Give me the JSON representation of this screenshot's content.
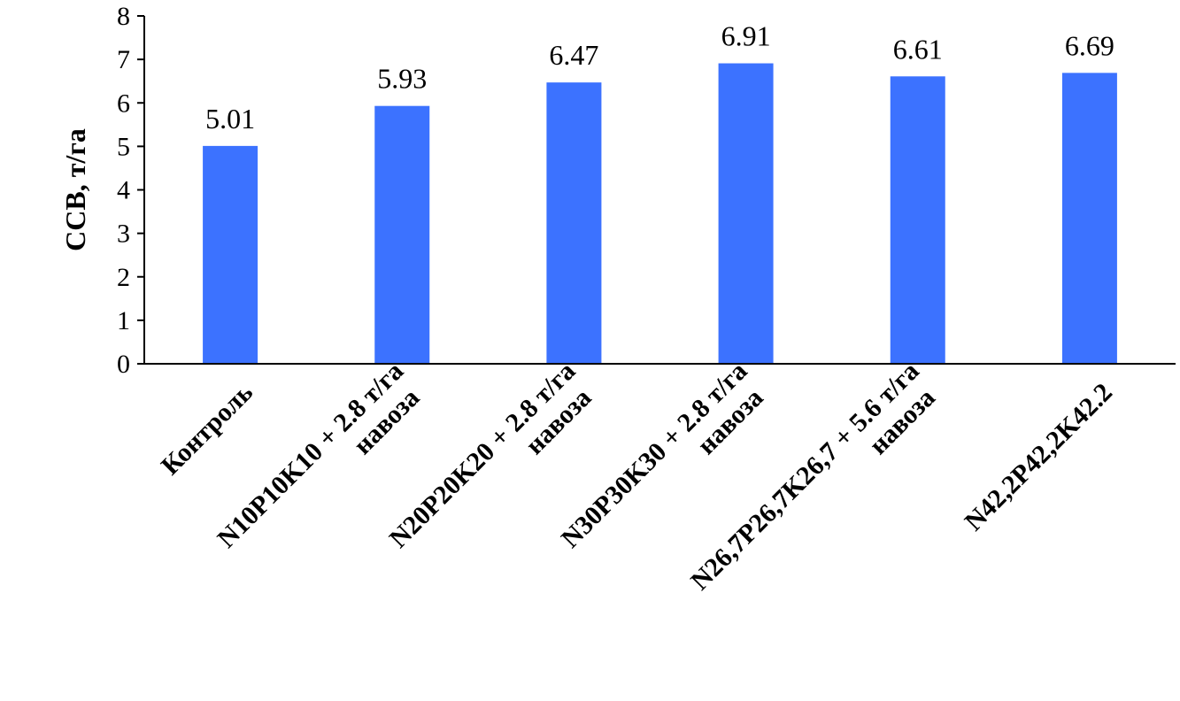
{
  "chart_data": {
    "type": "bar",
    "title": "",
    "xlabel": "",
    "ylabel": "ССВ, т/га",
    "ylim": [
      0,
      8
    ],
    "yticks": [
      0,
      1,
      2,
      3,
      4,
      5,
      6,
      7,
      8
    ],
    "grid": false,
    "legend": "none",
    "bar_color": "#3C72FF",
    "categories": [
      [
        "Контроль"
      ],
      [
        "N10P10K10 + 2.8 т/га",
        "навоза"
      ],
      [
        "N20P20K20 + 2.8 т/га",
        "навоза"
      ],
      [
        "N30P30K30 + 2.8 т/га",
        "навоза"
      ],
      [
        "N26,7P26,7K26,7 + 5.6 т/га",
        "навоза"
      ],
      [
        "N42,2P42,2K42.2"
      ]
    ],
    "values": [
      5.01,
      5.93,
      6.47,
      6.91,
      6.61,
      6.69
    ],
    "data_labels": [
      "5.01",
      "5.93",
      "6.47",
      "6.91",
      "6.61",
      "6.69"
    ]
  }
}
